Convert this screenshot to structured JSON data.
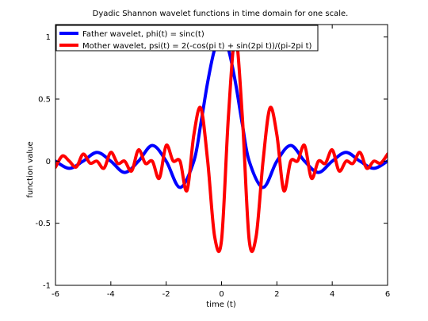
{
  "chart_data": {
    "type": "line",
    "title": "Dyadic Shannon wavelet functions in time domain for one scale.",
    "xlabel": "time (t)",
    "ylabel": "function value",
    "xlim": [
      -6,
      6
    ],
    "ylim": [
      -1,
      1.1
    ],
    "xticks": [
      -6,
      -4,
      -2,
      0,
      2,
      4,
      6
    ],
    "xtick_labels": [
      "-6",
      "-4",
      "-2",
      "0",
      "2",
      "4",
      "6"
    ],
    "yticks": [
      -1,
      -0.5,
      0,
      0.5,
      1
    ],
    "ytick_labels": [
      "-1",
      "-0.5",
      "0",
      "0.5",
      "1"
    ],
    "grid": false,
    "legend_position": "top-left",
    "series": [
      {
        "name": "Father wavelet, phi(t) = sinc(t)",
        "color": "#0000ff",
        "x": [
          -6,
          -5.5,
          -5,
          -4.5,
          -4,
          -3.5,
          -3,
          -2.5,
          -2,
          -1.5,
          -1,
          -0.75,
          -0.5,
          -0.25,
          0,
          0.25,
          0.5,
          0.75,
          1,
          1.5,
          2,
          2.5,
          3,
          3.5,
          4,
          4.5,
          5,
          5.5,
          6
        ],
        "y": [
          0,
          -0.058,
          0,
          0.071,
          0,
          -0.091,
          0,
          0.127,
          0,
          -0.212,
          0,
          0.3,
          0.637,
          0.9,
          1,
          0.9,
          0.637,
          0.3,
          0,
          -0.212,
          0,
          0.127,
          0,
          -0.091,
          0,
          0.071,
          0,
          -0.058,
          0
        ]
      },
      {
        "name": "Mother wavelet, psi(t) = 2(-cos(pi t) + sin(2pi t))/(pi-2pi t)",
        "color": "#ff0000",
        "x": [
          -6,
          -5.75,
          -5.5,
          -5.25,
          -5,
          -4.75,
          -4.5,
          -4.25,
          -4,
          -3.75,
          -3.5,
          -3.25,
          -3,
          -2.75,
          -2.5,
          -2.25,
          -2,
          -1.75,
          -1.5,
          -1.25,
          -1,
          -0.75,
          -0.5,
          -0.25,
          0,
          0.25,
          0.5,
          0.75,
          1,
          1.25,
          1.5,
          1.75,
          2,
          2.25,
          2.5,
          2.75,
          3,
          3.25,
          3.5,
          3.75,
          4,
          4.25,
          4.5,
          4.75,
          5,
          5.25,
          5.5,
          5.75,
          6
        ],
        "y": [
          -0.049,
          0.042,
          0,
          -0.047,
          0.057,
          -0.016,
          0,
          -0.057,
          0.071,
          -0.018,
          0,
          -0.079,
          0.091,
          -0.018,
          0,
          -0.138,
          0.127,
          0.002,
          0,
          -0.237,
          0.212,
          0.428,
          0,
          -0.606,
          -0.637,
          0.364,
          1.0,
          0.364,
          -0.637,
          -0.606,
          0,
          0.428,
          0.212,
          -0.237,
          0,
          0.002,
          0.127,
          -0.138,
          0,
          -0.018,
          0.091,
          -0.079,
          0,
          -0.018,
          0.071,
          -0.057,
          0,
          -0.016,
          0.057
        ]
      }
    ]
  }
}
